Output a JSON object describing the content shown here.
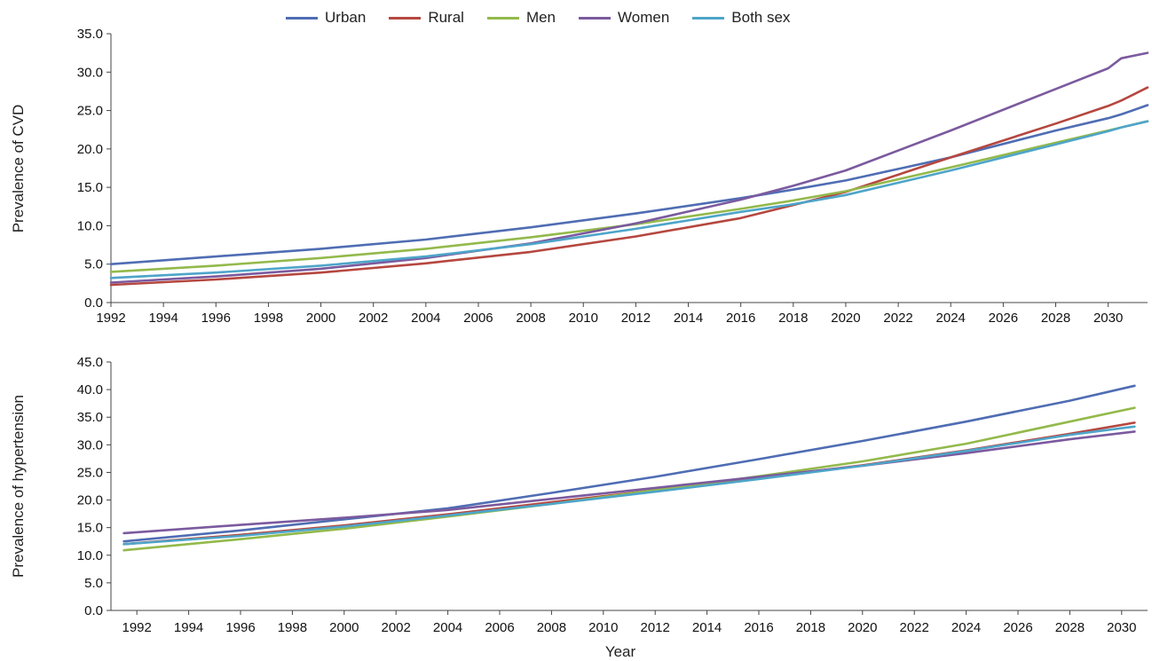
{
  "legend": [
    {
      "name": "Urban",
      "color": "#4F6DB3"
    },
    {
      "name": "Rural",
      "color": "#B5473F"
    },
    {
      "name": "Men",
      "color": "#93B94B"
    },
    {
      "name": "Women",
      "color": "#7B5A9E"
    },
    {
      "name": "Both sex",
      "color": "#4EA5C9"
    }
  ],
  "chart_data": [
    {
      "type": "line",
      "ylabel": "Prevalence of CVD",
      "xlabel": "",
      "ylim": [
        0,
        35
      ],
      "yticks": [
        "0.0",
        "5.0",
        "10.0",
        "15.0",
        "20.0",
        "25.0",
        "30.0",
        "35.0"
      ],
      "xticks": [
        "1992",
        "1994",
        "1996",
        "1998",
        "2000",
        "2002",
        "2004",
        "2006",
        "2008",
        "2010",
        "2012",
        "2014",
        "2016",
        "2018",
        "2020",
        "2022",
        "2024",
        "2026",
        "2028",
        "2030"
      ],
      "x": [
        1992,
        1996,
        2000,
        2004,
        2008,
        2012,
        2016,
        2018,
        2020,
        2024,
        2028,
        2030,
        2030.5,
        2031.5
      ],
      "series": [
        {
          "name": "Urban",
          "color": "#4F6DB3",
          "values": [
            5.0,
            6.0,
            7.0,
            8.2,
            9.8,
            11.6,
            13.6,
            14.7,
            15.9,
            18.9,
            22.4,
            24.0,
            24.5,
            25.7
          ]
        },
        {
          "name": "Rural",
          "color": "#B5473F",
          "values": [
            2.3,
            3.0,
            3.9,
            5.1,
            6.6,
            8.6,
            11.0,
            12.7,
            14.4,
            18.9,
            23.3,
            25.6,
            26.3,
            28.0
          ]
        },
        {
          "name": "Men",
          "color": "#93B94B",
          "values": [
            4.0,
            4.8,
            5.8,
            7.0,
            8.5,
            10.2,
            12.2,
            13.3,
            14.5,
            17.6,
            20.8,
            22.4,
            22.8,
            23.6
          ]
        },
        {
          "name": "Women",
          "color": "#7B5A9E",
          "values": [
            2.6,
            3.4,
            4.4,
            5.8,
            7.7,
            10.3,
            13.4,
            15.2,
            17.2,
            22.4,
            27.8,
            30.5,
            31.8,
            32.5
          ]
        },
        {
          "name": "Both sex",
          "color": "#4EA5C9",
          "values": [
            3.2,
            3.9,
            4.8,
            6.0,
            7.6,
            9.6,
            11.8,
            12.8,
            14.0,
            17.2,
            20.6,
            22.3,
            22.8,
            23.6
          ]
        }
      ]
    },
    {
      "type": "line",
      "ylabel": "Prevalence of hypertension",
      "xlabel": "Year",
      "ylim": [
        0,
        45
      ],
      "yticks": [
        "0.0",
        "5.0",
        "10.0",
        "15.0",
        "20.0",
        "25.0",
        "30.0",
        "35.0",
        "40.0",
        "45.0"
      ],
      "xticks": [
        "1992",
        "1994",
        "1996",
        "1998",
        "2000",
        "2002",
        "2004",
        "2006",
        "2008",
        "2010",
        "2012",
        "2014",
        "2016",
        "2018",
        "2020",
        "2022",
        "2024",
        "2026",
        "2028",
        "2030"
      ],
      "x": [
        1991.5,
        1996,
        2000,
        2004,
        2008,
        2012,
        2016,
        2020,
        2024,
        2028,
        2030.5
      ],
      "series": [
        {
          "name": "Urban",
          "color": "#4F6DB3",
          "values": [
            12.5,
            14.5,
            16.5,
            18.5,
            21.3,
            24.2,
            27.4,
            30.7,
            34.2,
            38.0,
            40.7
          ]
        },
        {
          "name": "Rural",
          "color": "#B5473F",
          "values": [
            12.0,
            13.7,
            15.4,
            17.4,
            19.6,
            21.8,
            24.0,
            26.3,
            29.0,
            32.0,
            34.0
          ]
        },
        {
          "name": "Men",
          "color": "#93B94B",
          "values": [
            10.9,
            12.9,
            14.8,
            17.0,
            19.3,
            21.8,
            24.3,
            27.0,
            30.2,
            34.2,
            36.7
          ]
        },
        {
          "name": "Women",
          "color": "#7B5A9E",
          "values": [
            14.0,
            15.5,
            16.8,
            18.2,
            20.2,
            22.2,
            24.2,
            26.2,
            28.5,
            31.0,
            32.4
          ]
        },
        {
          "name": "Both sex",
          "color": "#4EA5C9",
          "values": [
            12.0,
            13.5,
            15.2,
            17.2,
            19.3,
            21.5,
            23.8,
            26.2,
            28.9,
            31.8,
            33.3
          ]
        }
      ]
    }
  ]
}
